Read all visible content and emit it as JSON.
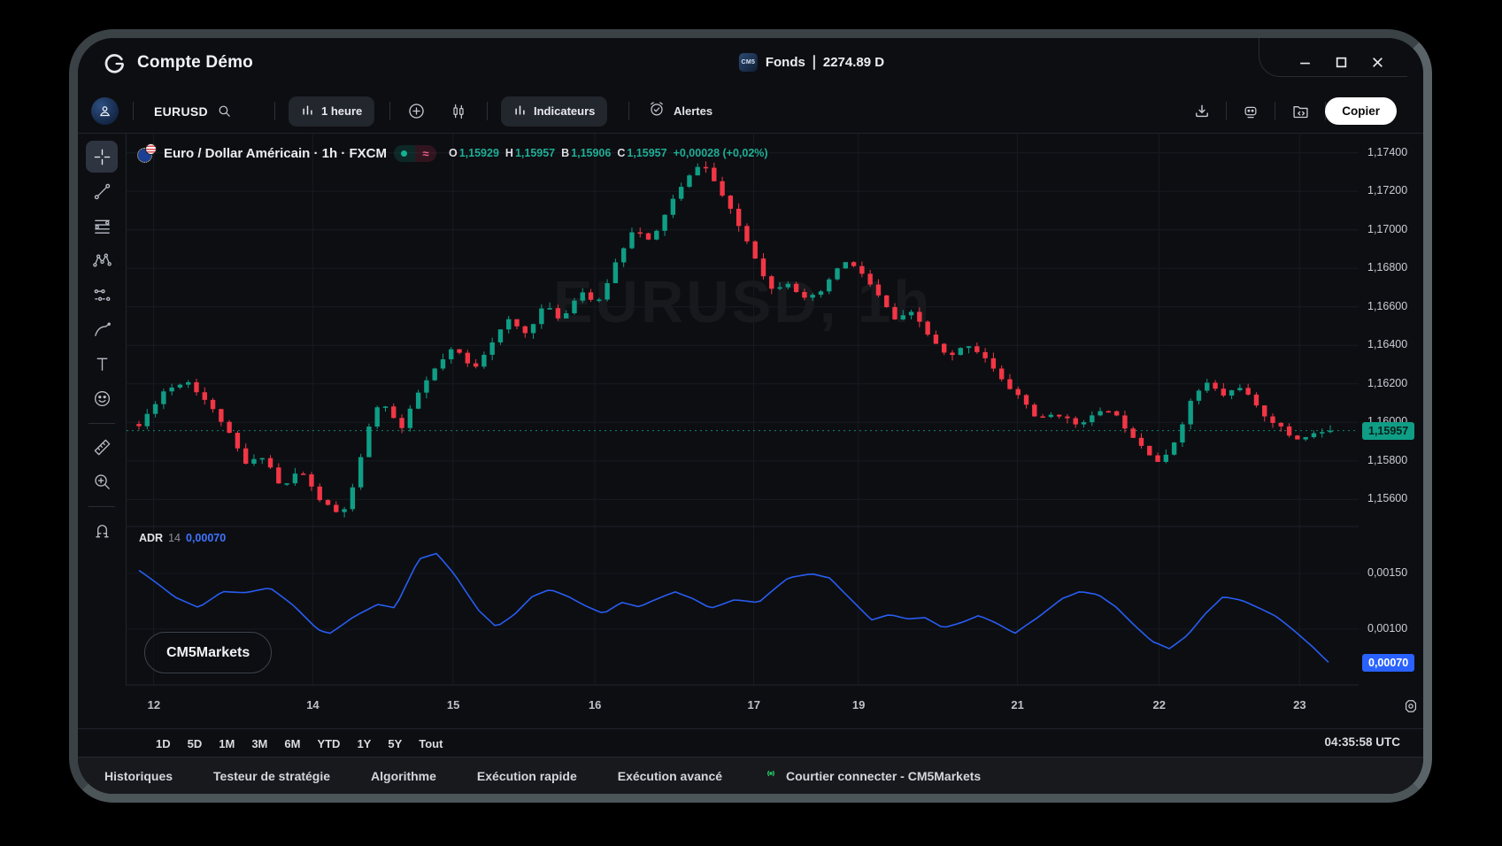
{
  "window": {
    "title": "Compte Démo",
    "funds_badge": "CM5",
    "funds_label": "Fonds",
    "funds_value": "2274.89 D",
    "controls": [
      "minimize",
      "maximize",
      "close"
    ]
  },
  "toolbar": {
    "symbol": "EURUSD",
    "interval": "1 heure",
    "indicators_label": "Indicateurs",
    "alerts_label": "Alertes",
    "copy_label": "Copier",
    "right_icons": [
      "download",
      "bot",
      "folder-code"
    ]
  },
  "legend": {
    "title": "Euro / Dollar Américain · 1h · FXCM",
    "o_label": "O",
    "o_value": "1,15929",
    "h_label": "H",
    "h_value": "1,15957",
    "b_label": "B",
    "b_value": "1,15906",
    "c_label": "C",
    "c_value": "1,15957",
    "change": "+0,00028 (+0,02%)"
  },
  "watermark": "EURUSD, 1h",
  "brand": "CM5Markets",
  "indicator_row": {
    "name": "ADR",
    "length": "14",
    "value": "0,00070"
  },
  "tools": [
    {
      "id": "crosshair",
      "selected": true
    },
    {
      "id": "trend-line"
    },
    {
      "id": "fib-lines"
    },
    {
      "id": "xabcd-pattern"
    },
    {
      "id": "projection"
    },
    {
      "id": "brush"
    },
    {
      "id": "text"
    },
    {
      "id": "emoji"
    },
    {
      "id": "divider"
    },
    {
      "id": "ruler"
    },
    {
      "id": "zoom-in"
    },
    {
      "id": "divider"
    },
    {
      "id": "magnet"
    }
  ],
  "range_toolbar": {
    "items": [
      "1D",
      "5D",
      "1M",
      "3M",
      "6M",
      "YTD",
      "1Y",
      "5Y",
      "Tout"
    ],
    "clock": "04:35:58 UTC"
  },
  "footer": {
    "items": [
      "Historiques",
      "Testeur de stratégie",
      "Algorithme",
      "Exécution rapide",
      "Exécution avancé"
    ],
    "broker": "Courtier connecter - CM5Markets"
  },
  "chart_data": {
    "type": "candlestick",
    "symbol": "EURUSD",
    "interval": "1h",
    "exchange": "FXCM",
    "last_price": 1.15957,
    "ohlc": {
      "open": 1.15929,
      "high": 1.15957,
      "low": 1.15906,
      "close": 1.15957,
      "change": 0.00028,
      "change_pct": 0.02
    },
    "colors": {
      "up": "#0f9d85",
      "down": "#f23645",
      "adr_line": "#2962ff",
      "price_badge": "#0f9d85",
      "adr_badge": "#2962ff"
    },
    "price_axis": {
      "range": [
        1.15459,
        1.175
      ],
      "ticks": [
        {
          "label": "1,17400",
          "v": 1.174
        },
        {
          "label": "1,17200",
          "v": 1.172
        },
        {
          "label": "1,17000",
          "v": 1.17
        },
        {
          "label": "1,16800",
          "v": 1.168
        },
        {
          "label": "1,16600",
          "v": 1.166
        },
        {
          "label": "1,16400",
          "v": 1.164
        },
        {
          "label": "1,16200",
          "v": 1.162
        },
        {
          "label": "1,16000",
          "v": 1.16
        },
        {
          "label": "1,15800",
          "v": 1.158
        },
        {
          "label": "1,15600",
          "v": 1.156
        }
      ],
      "current_label": "1,15957"
    },
    "time_axis": {
      "ticks": [
        {
          "label": "12",
          "f": 0.022
        },
        {
          "label": "14",
          "f": 0.151
        },
        {
          "label": "15",
          "f": 0.265
        },
        {
          "label": "16",
          "f": 0.38
        },
        {
          "label": "17",
          "f": 0.509
        },
        {
          "label": "19",
          "f": 0.594
        },
        {
          "label": "21",
          "f": 0.723
        },
        {
          "label": "22",
          "f": 0.838
        },
        {
          "label": "23",
          "f": 0.952
        }
      ]
    },
    "candle_count": 146,
    "price_path": [
      [
        0.0,
        1.1598
      ],
      [
        0.02,
        1.1616
      ],
      [
        0.04,
        1.1622
      ],
      [
        0.055,
        1.1612
      ],
      [
        0.07,
        1.16
      ],
      [
        0.09,
        1.1578
      ],
      [
        0.105,
        1.1583
      ],
      [
        0.12,
        1.1565
      ],
      [
        0.135,
        1.1576
      ],
      [
        0.15,
        1.1561
      ],
      [
        0.165,
        1.1553
      ],
      [
        0.175,
        1.1556
      ],
      [
        0.185,
        1.1578
      ],
      [
        0.195,
        1.1603
      ],
      [
        0.205,
        1.1611
      ],
      [
        0.22,
        1.1596
      ],
      [
        0.235,
        1.1616
      ],
      [
        0.25,
        1.1629
      ],
      [
        0.265,
        1.1639
      ],
      [
        0.28,
        1.1627
      ],
      [
        0.295,
        1.1641
      ],
      [
        0.31,
        1.1653
      ],
      [
        0.325,
        1.1646
      ],
      [
        0.34,
        1.1661
      ],
      [
        0.355,
        1.1653
      ],
      [
        0.37,
        1.1669
      ],
      [
        0.385,
        1.1661
      ],
      [
        0.4,
        1.1683
      ],
      [
        0.415,
        1.1701
      ],
      [
        0.43,
        1.1693
      ],
      [
        0.445,
        1.1713
      ],
      [
        0.46,
        1.1726
      ],
      [
        0.472,
        1.1736
      ],
      [
        0.485,
        1.1723
      ],
      [
        0.5,
        1.1706
      ],
      [
        0.515,
        1.1689
      ],
      [
        0.53,
        1.1669
      ],
      [
        0.545,
        1.1673
      ],
      [
        0.56,
        1.1663
      ],
      [
        0.575,
        1.1669
      ],
      [
        0.59,
        1.1684
      ],
      [
        0.605,
        1.1679
      ],
      [
        0.62,
        1.1666
      ],
      [
        0.635,
        1.1653
      ],
      [
        0.65,
        1.1657
      ],
      [
        0.665,
        1.1643
      ],
      [
        0.68,
        1.1633
      ],
      [
        0.695,
        1.1641
      ],
      [
        0.71,
        1.1634
      ],
      [
        0.725,
        1.1621
      ],
      [
        0.74,
        1.1613
      ],
      [
        0.755,
        1.1601
      ],
      [
        0.77,
        1.1605
      ],
      [
        0.785,
        1.1599
      ],
      [
        0.8,
        1.1603
      ],
      [
        0.815,
        1.1607
      ],
      [
        0.83,
        1.1596
      ],
      [
        0.845,
        1.1586
      ],
      [
        0.858,
        1.1578
      ],
      [
        0.87,
        1.1591
      ],
      [
        0.883,
        1.1611
      ],
      [
        0.895,
        1.1621
      ],
      [
        0.91,
        1.1614
      ],
      [
        0.925,
        1.1619
      ],
      [
        0.94,
        1.1606
      ],
      [
        0.955,
        1.1599
      ],
      [
        0.97,
        1.1591
      ],
      [
        0.985,
        1.1594
      ],
      [
        1.0,
        1.15957
      ]
    ],
    "indicator": {
      "name": "ADR",
      "length": 14,
      "last": 0.0007,
      "range": [
        0.000492,
        0.00192
      ],
      "ticks": [
        {
          "label": "0,00150",
          "v": 0.0015
        },
        {
          "label": "0,00100",
          "v": 0.001
        }
      ],
      "badge_label": "0,00070",
      "path": [
        [
          0.0,
          0.00152
        ],
        [
          0.03,
          0.00128
        ],
        [
          0.05,
          0.0012
        ],
        [
          0.07,
          0.00135
        ],
        [
          0.09,
          0.00133
        ],
        [
          0.11,
          0.00136
        ],
        [
          0.13,
          0.0012
        ],
        [
          0.15,
          0.001
        ],
        [
          0.16,
          0.00097
        ],
        [
          0.18,
          0.00112
        ],
        [
          0.2,
          0.00122
        ],
        [
          0.215,
          0.00118
        ],
        [
          0.235,
          0.00162
        ],
        [
          0.25,
          0.00168
        ],
        [
          0.265,
          0.0015
        ],
        [
          0.285,
          0.00118
        ],
        [
          0.3,
          0.00102
        ],
        [
          0.315,
          0.00112
        ],
        [
          0.33,
          0.00128
        ],
        [
          0.345,
          0.00135
        ],
        [
          0.36,
          0.0013
        ],
        [
          0.375,
          0.00122
        ],
        [
          0.39,
          0.00115
        ],
        [
          0.405,
          0.00124
        ],
        [
          0.42,
          0.00119
        ],
        [
          0.435,
          0.00126
        ],
        [
          0.45,
          0.00133
        ],
        [
          0.465,
          0.00128
        ],
        [
          0.48,
          0.0012
        ],
        [
          0.5,
          0.00127
        ],
        [
          0.52,
          0.00123
        ],
        [
          0.545,
          0.00145
        ],
        [
          0.565,
          0.0015
        ],
        [
          0.58,
          0.00147
        ],
        [
          0.6,
          0.00125
        ],
        [
          0.615,
          0.00108
        ],
        [
          0.63,
          0.00112
        ],
        [
          0.645,
          0.00108
        ],
        [
          0.66,
          0.0011
        ],
        [
          0.675,
          0.00102
        ],
        [
          0.69,
          0.00107
        ],
        [
          0.705,
          0.00113
        ],
        [
          0.72,
          0.00105
        ],
        [
          0.735,
          0.00095
        ],
        [
          0.755,
          0.0011
        ],
        [
          0.775,
          0.00128
        ],
        [
          0.79,
          0.00135
        ],
        [
          0.805,
          0.00132
        ],
        [
          0.82,
          0.0012
        ],
        [
          0.835,
          0.00103
        ],
        [
          0.85,
          0.00088
        ],
        [
          0.865,
          0.00082
        ],
        [
          0.88,
          0.00095
        ],
        [
          0.895,
          0.00115
        ],
        [
          0.91,
          0.0013
        ],
        [
          0.925,
          0.00126
        ],
        [
          0.94,
          0.00118
        ],
        [
          0.955,
          0.0011
        ],
        [
          0.97,
          0.00098
        ],
        [
          0.985,
          0.00085
        ],
        [
          1.0,
          0.0007
        ]
      ]
    }
  }
}
